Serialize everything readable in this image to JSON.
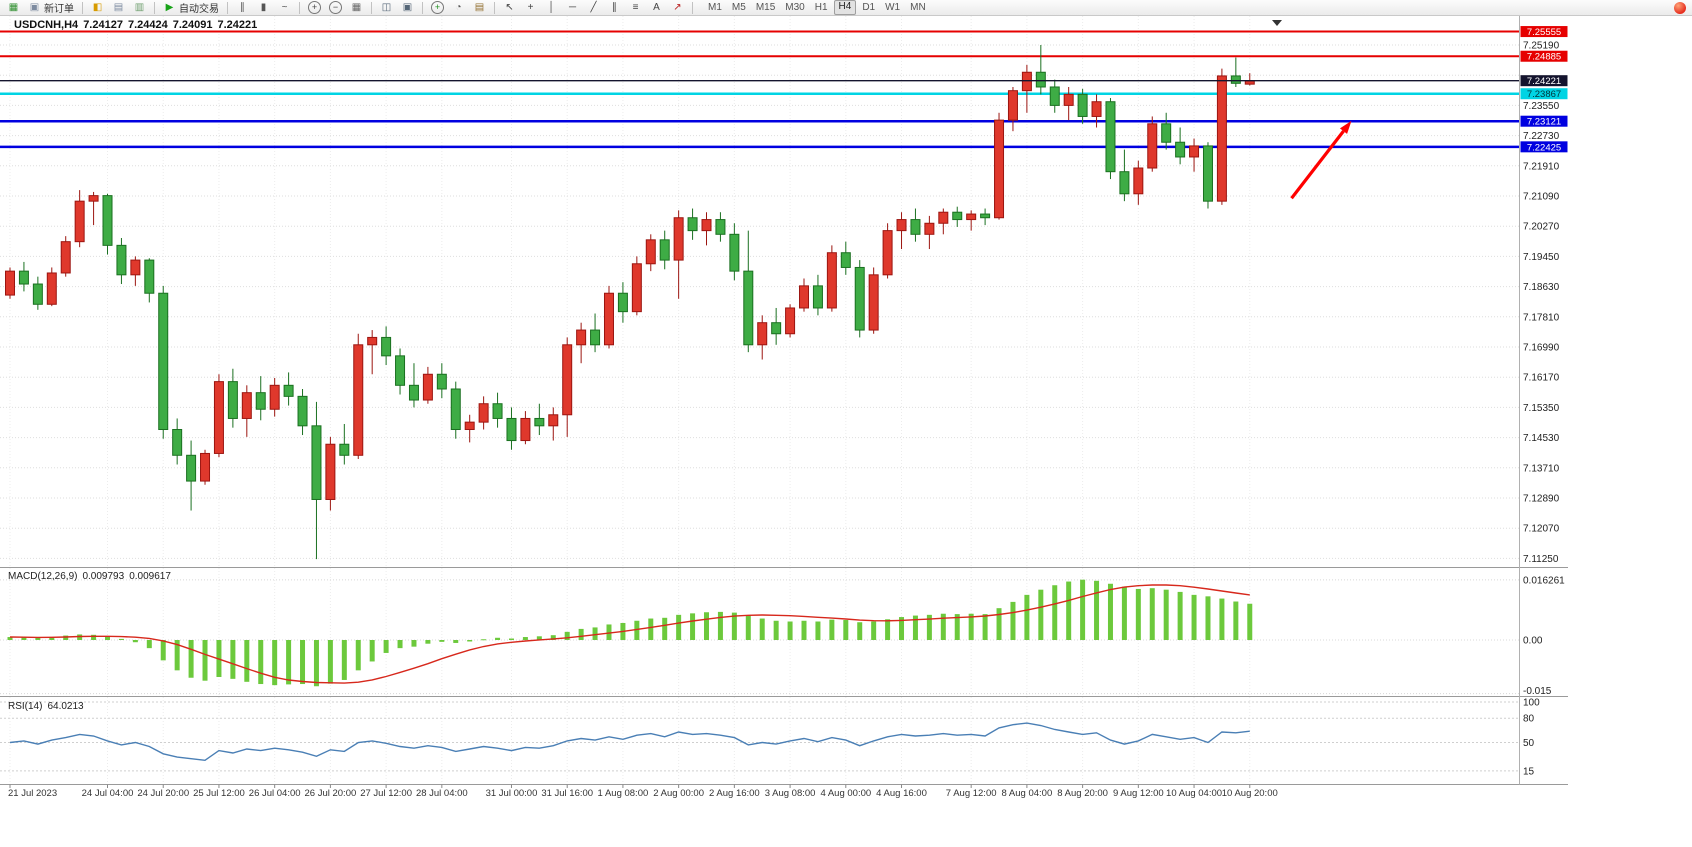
{
  "toolbar": {
    "groups": [
      [
        {
          "name": "new-chart-icon",
          "glyph": "▦",
          "color": "#2f8f2f"
        },
        {
          "name": "new-order-button",
          "glyph": "▣",
          "color": "#7d8ba0",
          "label": "新订单"
        }
      ],
      [
        {
          "name": "market-watch-icon",
          "glyph": "◧",
          "color": "#d79b00"
        },
        {
          "name": "data-window-icon",
          "glyph": "▤",
          "color": "#7b8aa0"
        },
        {
          "name": "navigator-icon",
          "glyph": "▥",
          "color": "#6f9f6f"
        }
      ],
      [
        {
          "name": "autotrade-button",
          "glyph": "▶",
          "color": "#18a318",
          "label": "自动交易"
        }
      ],
      [
        {
          "name": "bar-chart-icon",
          "glyph": "∥",
          "color": "#555555"
        },
        {
          "name": "candlestick-chart-icon",
          "glyph": "▮",
          "color": "#555555"
        },
        {
          "name": "line-chart-icon",
          "glyph": "~",
          "color": "#555555"
        }
      ],
      [
        {
          "name": "zoom-in-icon",
          "glyph": "+",
          "color": "#444444",
          "round": true
        },
        {
          "name": "zoom-out-icon",
          "glyph": "−",
          "color": "#444444",
          "round": true
        },
        {
          "name": "grid-icon",
          "glyph": "▦",
          "color": "#666666"
        }
      ],
      [
        {
          "name": "tile-windows-icon",
          "glyph": "◫",
          "color": "#556677"
        },
        {
          "name": "cascade-windows-icon",
          "glyph": "▣",
          "color": "#556677"
        }
      ],
      [
        {
          "name": "indicators-icon",
          "glyph": "+",
          "color": "#1d8f1d",
          "round": true
        },
        {
          "name": "periods-icon",
          "glyph": "◔",
          "color": "#555555"
        },
        {
          "name": "templates-icon",
          "glyph": "▤",
          "color": "#926f2f"
        }
      ],
      [
        {
          "name": "cursor-icon",
          "glyph": "↖",
          "color": "#444444"
        },
        {
          "name": "crosshair-icon",
          "glyph": "+",
          "color": "#444444"
        },
        {
          "name": "vertical-line-icon",
          "glyph": "│",
          "color": "#444444"
        },
        {
          "name": "horizontal-line-icon",
          "glyph": "─",
          "color": "#444444"
        },
        {
          "name": "trendline-icon",
          "glyph": "╱",
          "color": "#444444"
        },
        {
          "name": "channel-icon",
          "glyph": "∥",
          "color": "#444444"
        },
        {
          "name": "fibonacci-icon",
          "glyph": "≡",
          "color": "#444444"
        },
        {
          "name": "text-icon",
          "glyph": "A",
          "color": "#444444"
        },
        {
          "name": "arrows-icon",
          "glyph": "↗",
          "color": "#bb2222"
        }
      ]
    ],
    "timeframes": [
      "M1",
      "M5",
      "M15",
      "M30",
      "H1",
      "H4",
      "D1",
      "W1",
      "MN"
    ],
    "active_timeframe": "H4"
  },
  "chart_data": {
    "type": "candlestick",
    "symbol": "USDCNH,H4",
    "timeframe": "H4",
    "ohlc": {
      "open": "7.24127",
      "high": "7.24424",
      "low": "7.24091",
      "close": "7.24221"
    },
    "style": {
      "up": "#df382c",
      "up_border": "#9c1510",
      "down": "#3eac45",
      "down_border": "#1a7020",
      "grid": "#dedede",
      "macd_hist": "#6cc93c",
      "macd_signal": "#d7281c",
      "rsi_line": "#4a7fb5",
      "price_line": "#14142e",
      "arrow": "#ff0000"
    },
    "price_ticks": [
      {
        "label": "7.25190",
        "value": 7.2519
      },
      {
        "label": "",
        "value": 7.2437
      },
      {
        "label": "7.23550",
        "value": 7.2355
      },
      {
        "label": "7.22730",
        "value": 7.2273
      },
      {
        "label": "7.21910",
        "value": 7.2191
      },
      {
        "label": "7.21090",
        "value": 7.2109
      },
      {
        "label": "7.20270",
        "value": 7.2027
      },
      {
        "label": "7.19450",
        "value": 7.1945
      },
      {
        "label": "7.18630",
        "value": 7.1863
      },
      {
        "label": "7.17810",
        "value": 7.1781
      },
      {
        "label": "7.16990",
        "value": 7.1699
      },
      {
        "label": "7.16170",
        "value": 7.1617
      },
      {
        "label": "7.15350",
        "value": 7.1535
      },
      {
        "label": "7.14530",
        "value": 7.1453
      },
      {
        "label": "7.13710",
        "value": 7.1371
      },
      {
        "label": "7.12890",
        "value": 7.1289
      },
      {
        "label": "7.12070",
        "value": 7.1207
      },
      {
        "label": "7.11250",
        "value": 7.1125
      }
    ],
    "hlines": [
      {
        "label": "7.25555",
        "price": 7.25555,
        "color": "#e60000",
        "badge_bg": "#e60000",
        "badge_fg": "#ffffff",
        "width": 2
      },
      {
        "label": "7.24885",
        "price": 7.24885,
        "color": "#e60000",
        "badge_bg": "#e60000",
        "badge_fg": "#ffffff",
        "width": 2
      },
      {
        "label": "7.23867",
        "price": 7.23867,
        "color": "#00d4e4",
        "badge_bg": "#00d4e4",
        "badge_fg": "#00333a",
        "width": 2.5
      },
      {
        "label": "7.23121",
        "price": 7.23121,
        "color": "#0000e0",
        "badge_bg": "#0000e0",
        "badge_fg": "#ffffff",
        "width": 2.5
      },
      {
        "label": "7.22425",
        "price": 7.22425,
        "color": "#0000e0",
        "badge_bg": "#0000e0",
        "badge_fg": "#ffffff",
        "width": 2.5
      }
    ],
    "current_price": {
      "label": "7.24221",
      "price": 7.24221,
      "color": "#14142e",
      "badge_bg": "#14142e",
      "badge_fg": "#ffffff"
    },
    "candles": [
      [
        7.184,
        7.1915,
        7.183,
        7.1905
      ],
      [
        7.1905,
        7.193,
        7.185,
        7.187
      ],
      [
        7.187,
        7.189,
        7.18,
        7.1815
      ],
      [
        7.1815,
        7.1915,
        7.181,
        7.19
      ],
      [
        7.19,
        7.2,
        7.189,
        7.1985
      ],
      [
        7.1985,
        7.2125,
        7.197,
        7.2095
      ],
      [
        7.2095,
        7.212,
        7.203,
        7.211
      ],
      [
        7.211,
        7.2115,
        7.195,
        7.1975
      ],
      [
        7.1975,
        7.1995,
        7.187,
        7.1895
      ],
      [
        7.1895,
        7.1945,
        7.1865,
        7.1935
      ],
      [
        7.1935,
        7.194,
        7.182,
        7.1845
      ],
      [
        7.1845,
        7.1865,
        7.145,
        7.1475
      ],
      [
        7.1475,
        7.1505,
        7.138,
        7.1405
      ],
      [
        7.1405,
        7.1445,
        7.1255,
        7.1335
      ],
      [
        7.1335,
        7.142,
        7.1325,
        7.141
      ],
      [
        7.141,
        7.1625,
        7.14,
        7.1605
      ],
      [
        7.1605,
        7.164,
        7.148,
        7.1505
      ],
      [
        7.1505,
        7.1595,
        7.1455,
        7.1575
      ],
      [
        7.1575,
        7.162,
        7.15,
        7.153
      ],
      [
        7.153,
        7.1615,
        7.151,
        7.1595
      ],
      [
        7.1595,
        7.163,
        7.154,
        7.1565
      ],
      [
        7.1565,
        7.1585,
        7.146,
        7.1485
      ],
      [
        7.1485,
        7.155,
        7.1123,
        7.1285
      ],
      [
        7.1285,
        7.1455,
        7.1255,
        7.1435
      ],
      [
        7.1435,
        7.149,
        7.138,
        7.1405
      ],
      [
        7.1405,
        7.1735,
        7.1395,
        7.1705
      ],
      [
        7.1705,
        7.1745,
        7.1625,
        7.1725
      ],
      [
        7.1725,
        7.1755,
        7.165,
        7.1675
      ],
      [
        7.1675,
        7.1695,
        7.157,
        7.1595
      ],
      [
        7.1595,
        7.1655,
        7.1535,
        7.1555
      ],
      [
        7.1555,
        7.1645,
        7.1545,
        7.1625
      ],
      [
        7.1625,
        7.1655,
        7.156,
        7.1585
      ],
      [
        7.1585,
        7.1605,
        7.145,
        7.1475
      ],
      [
        7.1475,
        7.1515,
        7.144,
        7.1495
      ],
      [
        7.1495,
        7.1565,
        7.1475,
        7.1545
      ],
      [
        7.1545,
        7.1575,
        7.148,
        7.1505
      ],
      [
        7.1505,
        7.1535,
        7.142,
        7.1445
      ],
      [
        7.1445,
        7.1525,
        7.1435,
        7.1505
      ],
      [
        7.1505,
        7.1545,
        7.146,
        7.1485
      ],
      [
        7.1485,
        7.1535,
        7.1445,
        7.1515
      ],
      [
        7.1515,
        7.1725,
        7.1455,
        7.1705
      ],
      [
        7.1705,
        7.1765,
        7.1655,
        7.1745
      ],
      [
        7.1745,
        7.179,
        7.1685,
        7.1705
      ],
      [
        7.1705,
        7.1865,
        7.1695,
        7.1845
      ],
      [
        7.1845,
        7.1875,
        7.1765,
        7.1795
      ],
      [
        7.1795,
        7.1945,
        7.1785,
        7.1925
      ],
      [
        7.1925,
        7.2005,
        7.1905,
        7.199
      ],
      [
        7.199,
        7.2015,
        7.191,
        7.1935
      ],
      [
        7.1935,
        7.207,
        7.183,
        7.205
      ],
      [
        7.205,
        7.2075,
        7.199,
        7.2015
      ],
      [
        7.2015,
        7.2065,
        7.1975,
        7.2045
      ],
      [
        7.2045,
        7.2065,
        7.1985,
        7.2005
      ],
      [
        7.2005,
        7.2035,
        7.188,
        7.1905
      ],
      [
        7.1905,
        7.2015,
        7.1685,
        7.1705
      ],
      [
        7.1705,
        7.1785,
        7.1665,
        7.1765
      ],
      [
        7.1765,
        7.1805,
        7.1705,
        7.1735
      ],
      [
        7.1735,
        7.1815,
        7.1725,
        7.1805
      ],
      [
        7.1805,
        7.1885,
        7.1795,
        7.1865
      ],
      [
        7.1865,
        7.1895,
        7.1785,
        7.1805
      ],
      [
        7.1805,
        7.1975,
        7.1795,
        7.1955
      ],
      [
        7.1955,
        7.1985,
        7.1895,
        7.1915
      ],
      [
        7.1915,
        7.1935,
        7.1725,
        7.1745
      ],
      [
        7.1745,
        7.1915,
        7.1735,
        7.1895
      ],
      [
        7.1895,
        7.2035,
        7.1885,
        7.2015
      ],
      [
        7.2015,
        7.2065,
        7.1965,
        7.2045
      ],
      [
        7.2045,
        7.2075,
        7.1985,
        7.2005
      ],
      [
        7.2005,
        7.2055,
        7.1965,
        7.2035
      ],
      [
        7.2035,
        7.2075,
        7.2005,
        7.2065
      ],
      [
        7.2065,
        7.208,
        7.2025,
        7.2045
      ],
      [
        7.2045,
        7.207,
        7.2015,
        7.206
      ],
      [
        7.206,
        7.2075,
        7.203,
        7.205
      ],
      [
        7.205,
        7.2335,
        7.2045,
        7.2315
      ],
      [
        7.2315,
        7.2405,
        7.2285,
        7.2395
      ],
      [
        7.2395,
        7.2465,
        7.2335,
        7.2445
      ],
      [
        7.2445,
        7.2519,
        7.2385,
        7.2405
      ],
      [
        7.2405,
        7.2425,
        7.2335,
        7.2355
      ],
      [
        7.2355,
        7.2405,
        7.2315,
        7.2385
      ],
      [
        7.2385,
        7.24,
        7.2305,
        7.2325
      ],
      [
        7.2325,
        7.2385,
        7.2295,
        7.2365
      ],
      [
        7.2365,
        7.2375,
        7.2155,
        7.2175
      ],
      [
        7.2175,
        7.2235,
        7.2095,
        7.2115
      ],
      [
        7.2115,
        7.2205,
        7.2085,
        7.2185
      ],
      [
        7.2185,
        7.2325,
        7.2175,
        7.2305
      ],
      [
        7.2305,
        7.2335,
        7.2235,
        7.2255
      ],
      [
        7.2255,
        7.2295,
        7.2195,
        7.2215
      ],
      [
        7.2215,
        7.2265,
        7.2175,
        7.2245
      ],
      [
        7.2245,
        7.2255,
        7.2075,
        7.2095
      ],
      [
        7.2095,
        7.2455,
        7.2085,
        7.2435
      ],
      [
        7.2435,
        7.2485,
        7.2405,
        7.2415
      ],
      [
        7.24127,
        7.24424,
        7.24091,
        7.24221
      ]
    ],
    "time_axis": [
      {
        "label": "21 Jul 2023",
        "bar": 0
      },
      {
        "label": "24 Jul 04:00",
        "bar": 7
      },
      {
        "label": "24 Jul 20:00",
        "bar": 11
      },
      {
        "label": "25 Jul 12:00",
        "bar": 15
      },
      {
        "label": "26 Jul 04:00",
        "bar": 19
      },
      {
        "label": "26 Jul 20:00",
        "bar": 23
      },
      {
        "label": "27 Jul 12:00",
        "bar": 27
      },
      {
        "label": "28 Jul 04:00",
        "bar": 31
      },
      {
        "label": "31 Jul 00:00",
        "bar": 36
      },
      {
        "label": "31 Jul 16:00",
        "bar": 40
      },
      {
        "label": "1 Aug 08:00",
        "bar": 44
      },
      {
        "label": "2 Aug 00:00",
        "bar": 48
      },
      {
        "label": "2 Aug 16:00",
        "bar": 52
      },
      {
        "label": "3 Aug 08:00",
        "bar": 56
      },
      {
        "label": "4 Aug 00:00",
        "bar": 60
      },
      {
        "label": "4 Aug 16:00",
        "bar": 64
      },
      {
        "label": "7 Aug 12:00",
        "bar": 69
      },
      {
        "label": "8 Aug 04:00",
        "bar": 73
      },
      {
        "label": "8 Aug 20:00",
        "bar": 77
      },
      {
        "label": "9 Aug 12:00",
        "bar": 81
      },
      {
        "label": "10 Aug 04:00",
        "bar": 85
      },
      {
        "label": "10 Aug 20:00",
        "bar": 89
      }
    ],
    "macd": {
      "name": "MACD(12,26,9)",
      "main_value": "0.009793",
      "signal_value": "0.009617",
      "scale": [
        {
          "label": "0.016261",
          "value": 0.016261
        },
        {
          "label": "0.00",
          "value": 0
        },
        {
          "label": "-0.015",
          "value": -0.0145
        }
      ],
      "histogram": [
        0.0008,
        0.0007,
        0.0006,
        0.0008,
        0.0012,
        0.0015,
        0.0014,
        0.0009,
        0.0003,
        -0.0006,
        -0.0022,
        -0.0055,
        -0.0082,
        -0.0102,
        -0.011,
        -0.01,
        -0.0105,
        -0.0113,
        -0.0119,
        -0.0122,
        -0.012,
        -0.0119,
        -0.0125,
        -0.0118,
        -0.0108,
        -0.0082,
        -0.0058,
        -0.0035,
        -0.0022,
        -0.0018,
        -0.001,
        -0.0005,
        -0.0008,
        -0.0004,
        0.0002,
        0.0006,
        0.0004,
        0.0008,
        0.001,
        0.0013,
        0.0022,
        0.003,
        0.0034,
        0.0042,
        0.0046,
        0.0052,
        0.0058,
        0.006,
        0.0068,
        0.0072,
        0.0075,
        0.0076,
        0.0074,
        0.0066,
        0.0058,
        0.0052,
        0.005,
        0.0052,
        0.005,
        0.0055,
        0.0054,
        0.0048,
        0.005,
        0.0056,
        0.0062,
        0.0066,
        0.0068,
        0.0071,
        0.007,
        0.0071,
        0.007,
        0.0086,
        0.0103,
        0.0122,
        0.0136,
        0.0148,
        0.0158,
        0.0163,
        0.016,
        0.0152,
        0.0144,
        0.0138,
        0.014,
        0.0136,
        0.013,
        0.0122,
        0.0118,
        0.0112,
        0.0104,
        0.0098
      ]
    },
    "rsi": {
      "name": "RSI(14)",
      "value": "64.0213",
      "levels": [
        {
          "label": "100",
          "value": 100,
          "line": true
        },
        {
          "label": "80",
          "value": 80,
          "line": true
        },
        {
          "label": "50",
          "value": 50,
          "line": true
        },
        {
          "label": "15",
          "value": 15,
          "line": true
        }
      ],
      "points": [
        50,
        52,
        48,
        53,
        56,
        60,
        58,
        52,
        47,
        50,
        45,
        36,
        32,
        30,
        28,
        40,
        37,
        42,
        40,
        43,
        41,
        38,
        33,
        41,
        39,
        50,
        52,
        49,
        45,
        43,
        46,
        44,
        39,
        42,
        45,
        43,
        40,
        44,
        43,
        46,
        52,
        55,
        53,
        57,
        54,
        59,
        61,
        57,
        63,
        60,
        61,
        59,
        56,
        47,
        50,
        48,
        52,
        55,
        51,
        56,
        53,
        46,
        52,
        57,
        60,
        58,
        59,
        61,
        59,
        60,
        58,
        68,
        72,
        74,
        71,
        66,
        63,
        60,
        62,
        53,
        48,
        52,
        60,
        57,
        54,
        56,
        50,
        63,
        62,
        64
      ]
    },
    "annotations": [
      {
        "type": "arrow",
        "from_bar": 92,
        "from_price": 7.2103,
        "to_bar": 96.3,
        "to_price": 7.2313,
        "color": "#ff0000"
      }
    ]
  }
}
